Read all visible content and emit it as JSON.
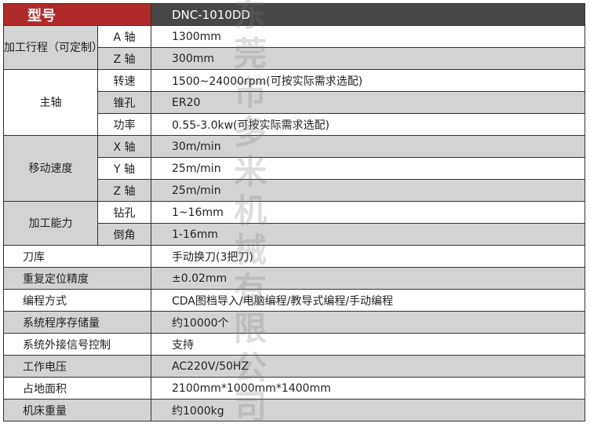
{
  "header": {
    "model_label": "型号",
    "model_value": "DNC-1010DD"
  },
  "groups": [
    {
      "label": "加工行程（可定制）",
      "rows": [
        {
          "sub": "A 轴",
          "value": "1300mm"
        },
        {
          "sub": "Z 轴",
          "value": "300mm"
        }
      ]
    },
    {
      "label": "主轴",
      "rows": [
        {
          "sub": "转速",
          "value": "1500~24000rpm(可按实际需求选配)"
        },
        {
          "sub": "锥孔",
          "value": "ER20"
        },
        {
          "sub": "功率",
          "value": "0.55-3.0kw(可按实际需求选配)"
        }
      ]
    },
    {
      "label": "移动速度",
      "rows": [
        {
          "sub": "X 轴",
          "value": "30m/min"
        },
        {
          "sub": "Y 轴",
          "value": "25m/min"
        },
        {
          "sub": "Z 轴",
          "value": "25m/min"
        }
      ]
    },
    {
      "label": "加工能力",
      "rows": [
        {
          "sub": "钻孔",
          "value": "1~16mm"
        },
        {
          "sub": "倒角",
          "value": "1-16mm"
        }
      ]
    }
  ],
  "rows": [
    {
      "label": "刀库",
      "value": "手动换刀(3把刀)"
    },
    {
      "label": "重复定位精度",
      "value": "±0.02mm"
    },
    {
      "label": "编程方式",
      "value": "CDA图档导入/电脑编程/教导式编程/手动编程"
    },
    {
      "label": "系统程序存储量",
      "value": "约10000个"
    },
    {
      "label": "系统外接信号控制",
      "value": "支持"
    },
    {
      "label": "工作电压",
      "value": "AC220V/50HZ"
    },
    {
      "label": "占地面积",
      "value": "2100mm*1000mm*1400mm"
    },
    {
      "label": "机床重量",
      "value": "约1000kg"
    }
  ],
  "watermark": "东莞市多米机械有限公司",
  "colors": {
    "header_red": "#b02a2a",
    "header_dark": "#474747",
    "row_gray": "#d3d3d3"
  }
}
